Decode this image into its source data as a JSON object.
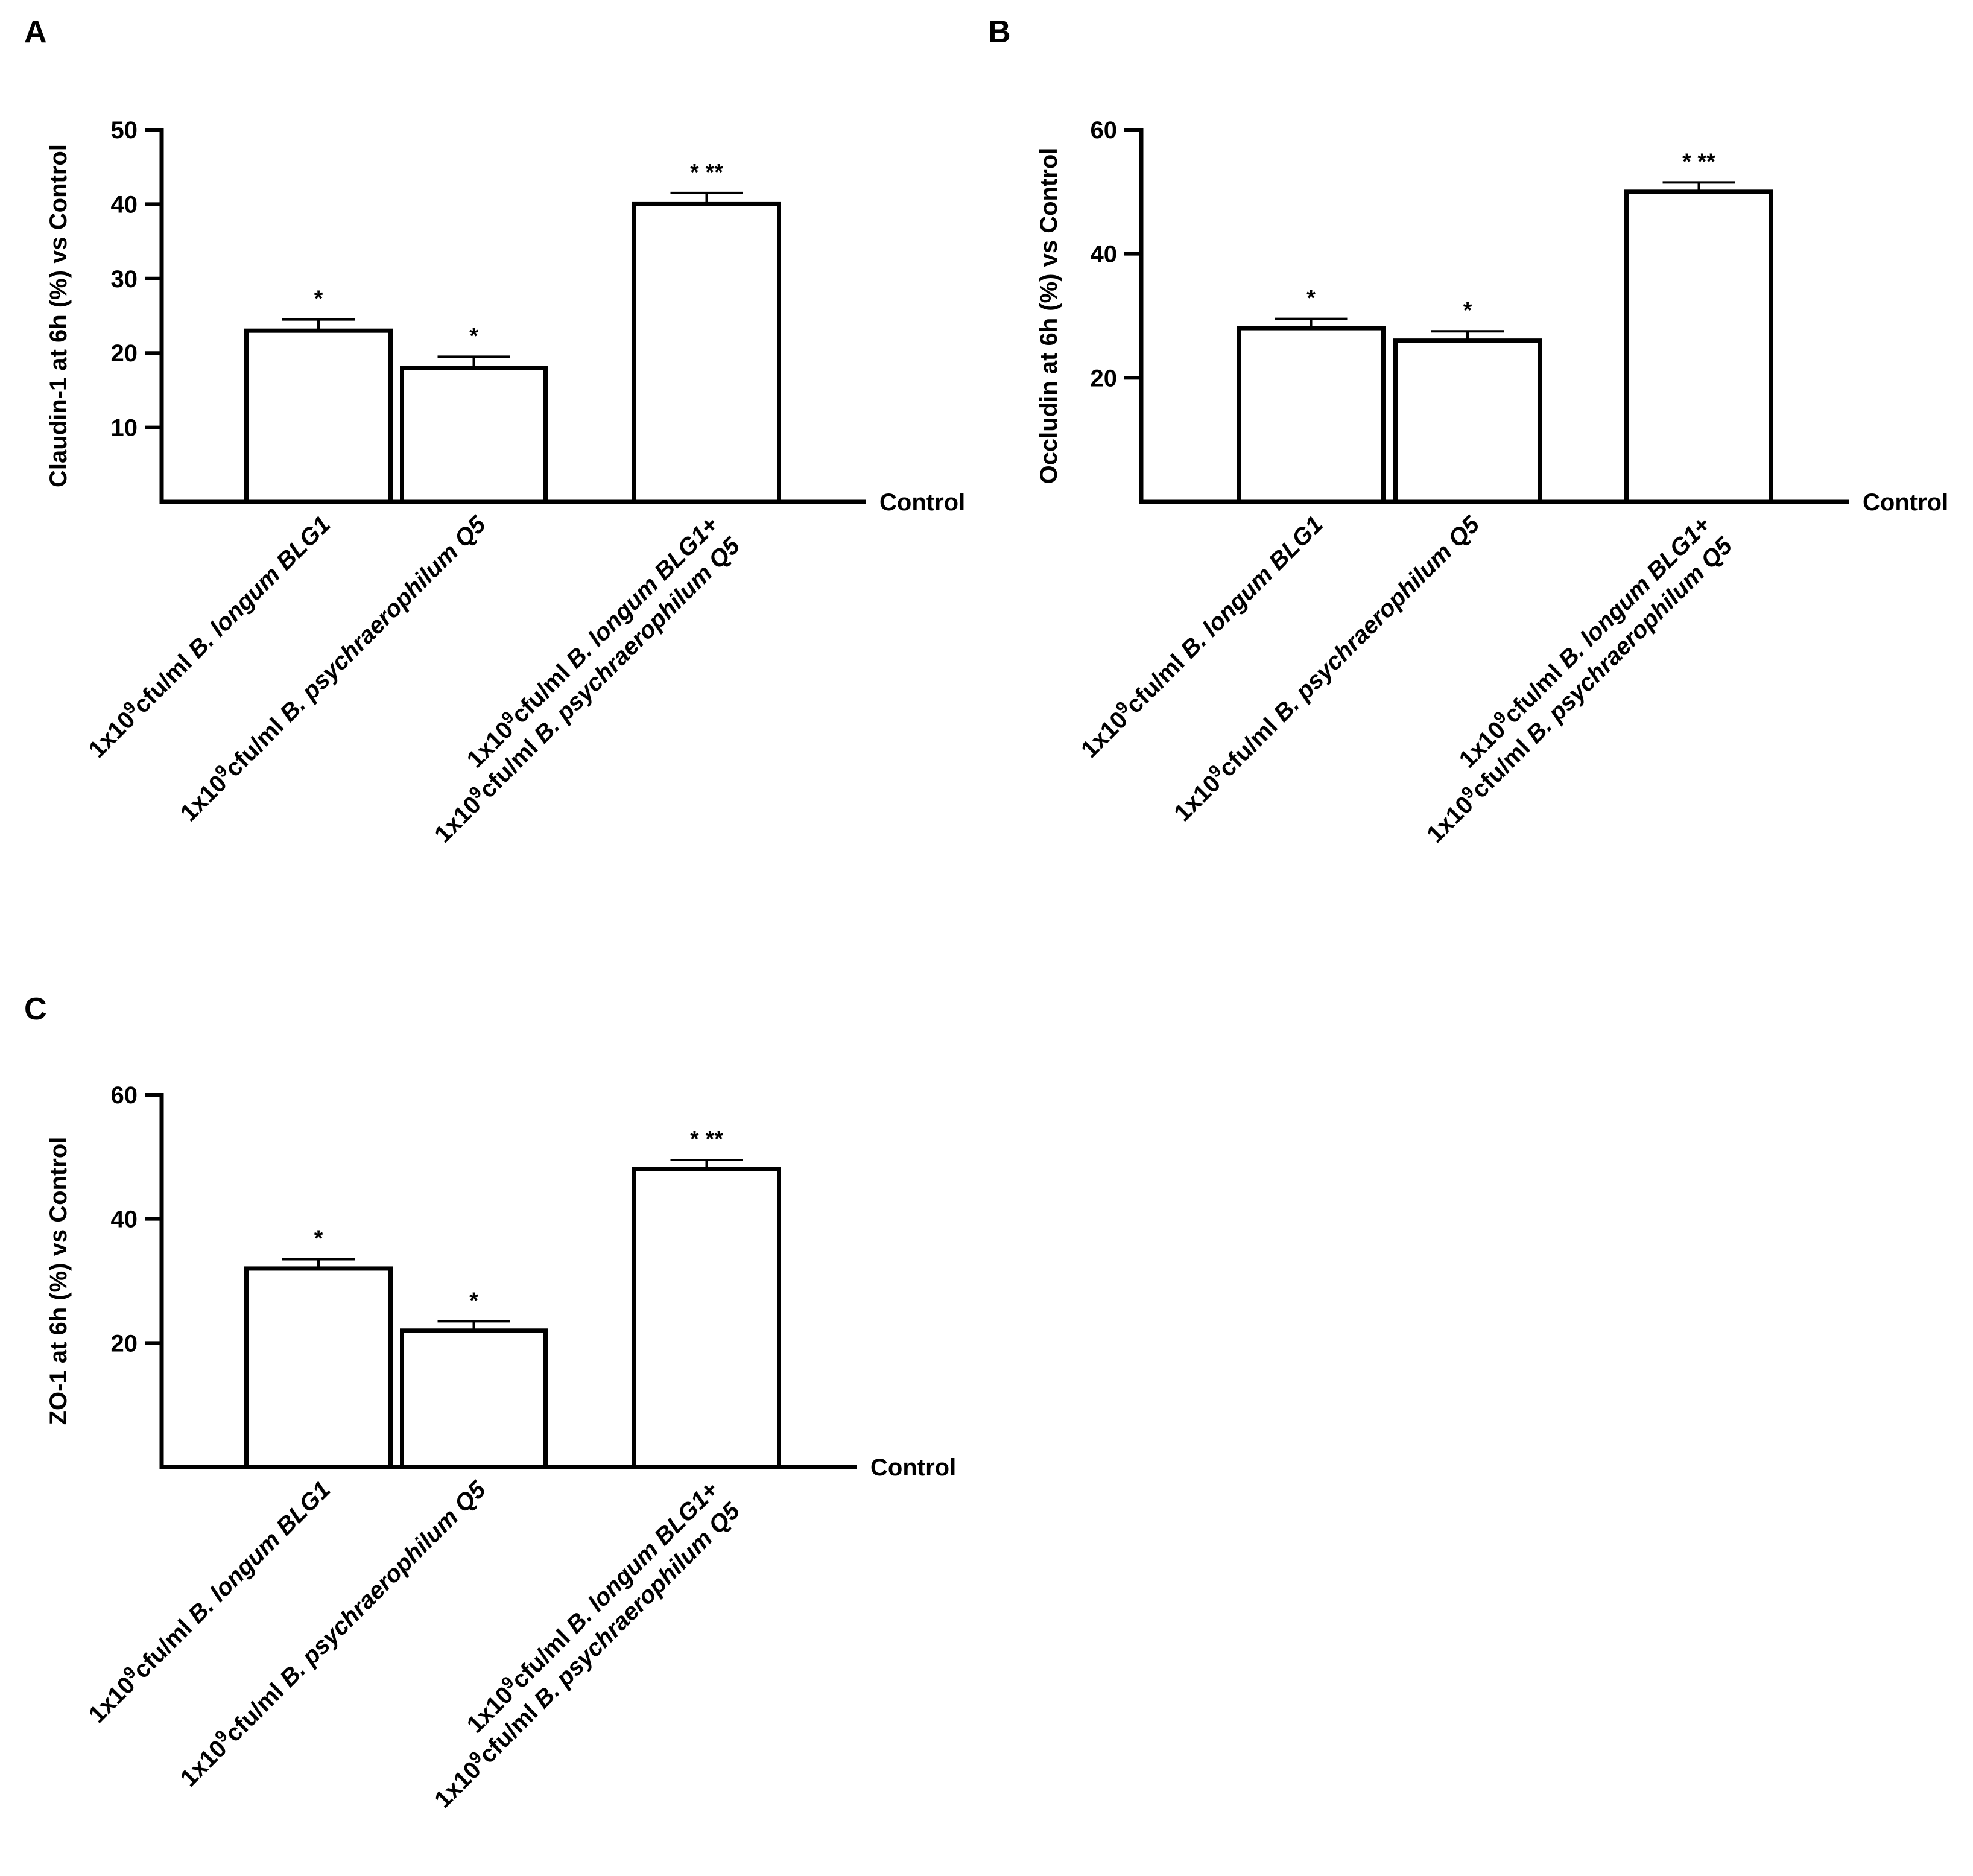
{
  "chart_data": [
    {
      "panel": "A",
      "type": "bar",
      "ylabel": "Claudin-1 at 6h (%) vs Control",
      "baseline_label": "Control",
      "yticks": [
        10,
        20,
        30,
        40,
        50
      ],
      "ylim": [
        0,
        50
      ],
      "categories": [
        {
          "line1": [
            {
              "t": "1x10"
            },
            {
              "t": "9",
              "sup": true
            },
            {
              "t": "cfu/ml "
            },
            {
              "t": "B. longum BLG1",
              "i": true
            }
          ],
          "line2": []
        },
        {
          "line1": [
            {
              "t": "1x10"
            },
            {
              "t": "9",
              "sup": true
            },
            {
              "t": "cfu/ml "
            },
            {
              "t": "B. psychraerophilum Q5",
              "i": true
            }
          ],
          "line2": []
        },
        {
          "line1": [
            {
              "t": "1x10"
            },
            {
              "t": "9",
              "sup": true
            },
            {
              "t": "cfu/ml "
            },
            {
              "t": "B. longum BLG1",
              "i": true
            },
            {
              "t": "+"
            }
          ],
          "line2": [
            {
              "t": "1x10"
            },
            {
              "t": "9",
              "sup": true
            },
            {
              "t": "cfu/ml "
            },
            {
              "t": "B. psychraerophilum Q5",
              "i": true
            }
          ]
        }
      ],
      "values": [
        23,
        18,
        40
      ],
      "errors": [
        1.5,
        1.5,
        1.5
      ],
      "significance": [
        "*",
        "*",
        "* **"
      ]
    },
    {
      "panel": "B",
      "type": "bar",
      "ylabel": "Occludin at 6h (%) vs Control",
      "baseline_label": "Control",
      "yticks": [
        20,
        40,
        60
      ],
      "ylim": [
        0,
        60
      ],
      "categories": [
        {
          "line1": [
            {
              "t": "1x10"
            },
            {
              "t": "9",
              "sup": true
            },
            {
              "t": "cfu/ml "
            },
            {
              "t": "B. longum BLG1",
              "i": true
            }
          ],
          "line2": []
        },
        {
          "line1": [
            {
              "t": "1x10"
            },
            {
              "t": "9",
              "sup": true
            },
            {
              "t": "cfu/ml "
            },
            {
              "t": "B. psychraerophilum Q5",
              "i": true
            }
          ],
          "line2": []
        },
        {
          "line1": [
            {
              "t": "1x10"
            },
            {
              "t": "9",
              "sup": true
            },
            {
              "t": "cfu/ml "
            },
            {
              "t": "B. longum BLG1",
              "i": true
            },
            {
              "t": "+"
            }
          ],
          "line2": [
            {
              "t": "1x10"
            },
            {
              "t": "9",
              "sup": true
            },
            {
              "t": "cfu/ml "
            },
            {
              "t": "B. psychraerophilum Q5",
              "i": true
            }
          ]
        }
      ],
      "values": [
        28,
        26,
        50
      ],
      "errors": [
        1.5,
        1.5,
        1.5
      ],
      "significance": [
        "*",
        "*",
        "* **"
      ]
    },
    {
      "panel": "C",
      "type": "bar",
      "ylabel": "ZO-1 at 6h (%) vs Control",
      "baseline_label": "Control",
      "yticks": [
        20,
        40,
        60
      ],
      "ylim": [
        0,
        60
      ],
      "categories": [
        {
          "line1": [
            {
              "t": "1x10"
            },
            {
              "t": "9",
              "sup": true
            },
            {
              "t": "cfu/ml "
            },
            {
              "t": "B. longum BLG1",
              "i": true
            }
          ],
          "line2": []
        },
        {
          "line1": [
            {
              "t": "1x10"
            },
            {
              "t": "9",
              "sup": true
            },
            {
              "t": "cfu/ml "
            },
            {
              "t": "B. psychraerophilum Q5",
              "i": true
            }
          ],
          "line2": []
        },
        {
          "line1": [
            {
              "t": "1x10"
            },
            {
              "t": "9",
              "sup": true
            },
            {
              "t": "cfu/ml "
            },
            {
              "t": "B. longum BLG1",
              "i": true
            },
            {
              "t": "+"
            }
          ],
          "line2": [
            {
              "t": "1x10"
            },
            {
              "t": "9",
              "sup": true
            },
            {
              "t": "cfu/ml "
            },
            {
              "t": "B. psychraerophilum Q5",
              "i": true
            }
          ]
        }
      ],
      "values": [
        32,
        22,
        48
      ],
      "errors": [
        1.5,
        1.5,
        1.5
      ],
      "significance": [
        "*",
        "*",
        "* **"
      ]
    }
  ]
}
